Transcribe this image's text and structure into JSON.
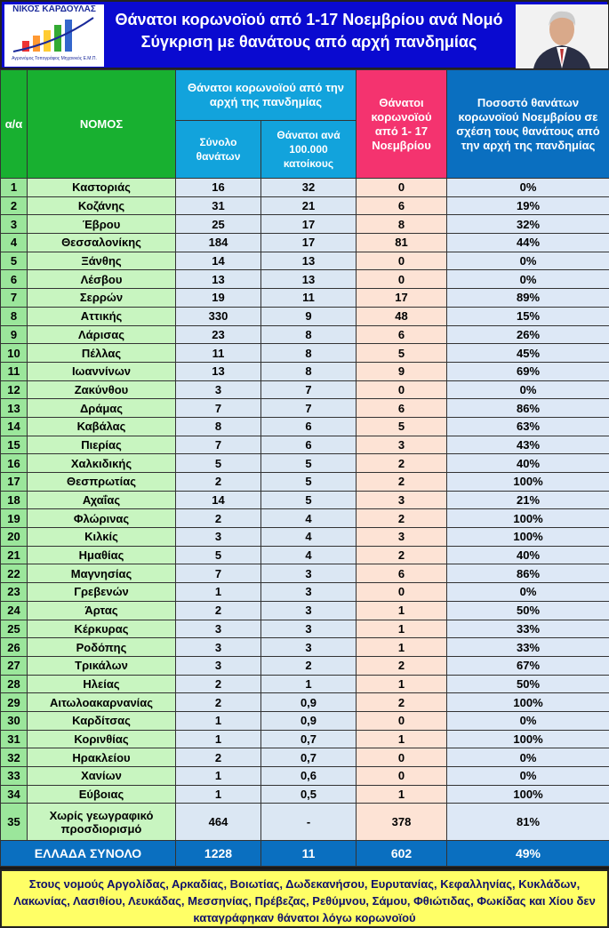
{
  "header": {
    "logo_name": "ΝΙΚΟΣ ΚΑΡΔΟΥΛΑΣ",
    "logo_sub": "Αγρονόμος Τοπογράφος Μηχανικός Ε.Μ.Π.",
    "title": "Θάνατοι κορωνοϊού από 1-17 Νοεμβρίου ανά Νομό",
    "subtitle": "Σύγκριση με θανάτους από αρχή πανδημίας"
  },
  "table": {
    "columns": {
      "index": "α/α",
      "region": "ΝΟΜΟΣ",
      "group": "Θάνατοι κορωνοϊού από την αρχή της πανδημίας",
      "total": "Σύνολο θανάτων",
      "per100k": "Θάνατοι ανά 100.000 κατοίκους",
      "november": "Θάνατοι κορωνοϊού από 1- 17 Νοεμβρίου",
      "percent": "Ποσοστό θανάτων κορωνοϊού Νοεμβρίου σε σχέση τους θανάτους από την αρχή της πανδημίας"
    },
    "rows": [
      [
        "1",
        "Καστοριάς",
        "16",
        "32",
        "0",
        "0%"
      ],
      [
        "2",
        "Κοζάνης",
        "31",
        "21",
        "6",
        "19%"
      ],
      [
        "3",
        "Έβρου",
        "25",
        "17",
        "8",
        "32%"
      ],
      [
        "4",
        "Θεσσαλονίκης",
        "184",
        "17",
        "81",
        "44%"
      ],
      [
        "5",
        "Ξάνθης",
        "14",
        "13",
        "0",
        "0%"
      ],
      [
        "6",
        "Λέσβου",
        "13",
        "13",
        "0",
        "0%"
      ],
      [
        "7",
        "Σερρών",
        "19",
        "11",
        "17",
        "89%"
      ],
      [
        "8",
        "Αττικής",
        "330",
        "9",
        "48",
        "15%"
      ],
      [
        "9",
        "Λάρισας",
        "23",
        "8",
        "6",
        "26%"
      ],
      [
        "10",
        "Πέλλας",
        "11",
        "8",
        "5",
        "45%"
      ],
      [
        "11",
        "Ιωαννίνων",
        "13",
        "8",
        "9",
        "69%"
      ],
      [
        "12",
        "Ζακύνθου",
        "3",
        "7",
        "0",
        "0%"
      ],
      [
        "13",
        "Δράμας",
        "7",
        "7",
        "6",
        "86%"
      ],
      [
        "14",
        "Καβάλας",
        "8",
        "6",
        "5",
        "63%"
      ],
      [
        "15",
        "Πιερίας",
        "7",
        "6",
        "3",
        "43%"
      ],
      [
        "16",
        "Χαλκιδικής",
        "5",
        "5",
        "2",
        "40%"
      ],
      [
        "17",
        "Θεσπρωτίας",
        "2",
        "5",
        "2",
        "100%"
      ],
      [
        "18",
        "Αχαΐας",
        "14",
        "5",
        "3",
        "21%"
      ],
      [
        "19",
        "Φλώρινας",
        "2",
        "4",
        "2",
        "100%"
      ],
      [
        "20",
        "Κιλκίς",
        "3",
        "4",
        "3",
        "100%"
      ],
      [
        "21",
        "Ημαθίας",
        "5",
        "4",
        "2",
        "40%"
      ],
      [
        "22",
        "Μαγνησίας",
        "7",
        "3",
        "6",
        "86%"
      ],
      [
        "23",
        "Γρεβενών",
        "1",
        "3",
        "0",
        "0%"
      ],
      [
        "24",
        "Άρτας",
        "2",
        "3",
        "1",
        "50%"
      ],
      [
        "25",
        "Κέρκυρας",
        "3",
        "3",
        "1",
        "33%"
      ],
      [
        "26",
        "Ροδόπης",
        "3",
        "3",
        "1",
        "33%"
      ],
      [
        "27",
        "Τρικάλων",
        "3",
        "2",
        "2",
        "67%"
      ],
      [
        "28",
        "Ηλείας",
        "2",
        "1",
        "1",
        "50%"
      ],
      [
        "29",
        "Αιτωλοακαρνανίας",
        "2",
        "0,9",
        "2",
        "100%"
      ],
      [
        "30",
        "Καρδίτσας",
        "1",
        "0,9",
        "0",
        "0%"
      ],
      [
        "31",
        "Κορινθίας",
        "1",
        "0,7",
        "1",
        "100%"
      ],
      [
        "32",
        "Ηρακλείου",
        "2",
        "0,7",
        "0",
        "0%"
      ],
      [
        "33",
        "Χανίων",
        "1",
        "0,6",
        "0",
        "0%"
      ],
      [
        "34",
        "Εύβοιας",
        "1",
        "0,5",
        "1",
        "100%"
      ],
      [
        "35",
        "Χωρίς γεωγραφικό προσδιορισμό",
        "464",
        "-",
        "378",
        "81%"
      ]
    ],
    "total": [
      "ΕΛΛΑΔΑ ΣΥΝΟΛΟ",
      "1228",
      "11",
      "602",
      "49%"
    ]
  },
  "note": "Στους νομούς Αργολίδας, Αρκαδίας, Βοιωτίας, Δωδεκανήσου, Ευρυτανίας, Κεφαλληνίας, Κυκλάδων, Λακωνίας, Λασιθίου, Λευκάδας, Μεσσηνίας, Πρέβεζας, Ρεθύμνου, Σάμου, Φθιώτιδας, Φωκίδας και Χίου δεν καταγράφηκαν θάνατοι λόγω κορωνοϊού"
}
